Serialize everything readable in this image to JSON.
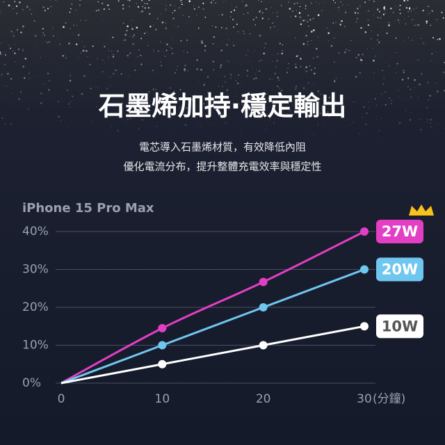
{
  "header": {
    "title": "石墨烯加持·穩定輸出",
    "subtitle_lines": [
      "電芯導入石墨烯材質，有效降低內阻",
      "優化電流分布，提升整體充電效率與穩定性"
    ]
  },
  "chart_data": {
    "type": "line",
    "title": "iPhone 15 Pro Max",
    "x_label": "(分鐘)",
    "x": [
      0,
      10,
      20,
      30
    ],
    "xlim": [
      0,
      30
    ],
    "xticks": [
      0,
      10,
      20,
      30
    ],
    "ylim": [
      0,
      40
    ],
    "yticks": [
      {
        "value": 0,
        "label": "0%"
      },
      {
        "value": 10,
        "label": "10%"
      },
      {
        "value": 20,
        "label": "20%"
      },
      {
        "value": 30,
        "label": "30%"
      },
      {
        "value": 40,
        "label": "40%"
      }
    ],
    "grid": true,
    "series": [
      {
        "name": "27W",
        "color": "#e23fc4",
        "values": [
          0,
          14.5,
          26.7,
          40
        ]
      },
      {
        "name": "20W",
        "color": "#6fc6ef",
        "values": [
          0,
          10,
          20,
          30
        ]
      },
      {
        "name": "10W",
        "color": "#ffffff",
        "values": [
          0,
          5,
          10,
          15
        ]
      }
    ]
  }
}
